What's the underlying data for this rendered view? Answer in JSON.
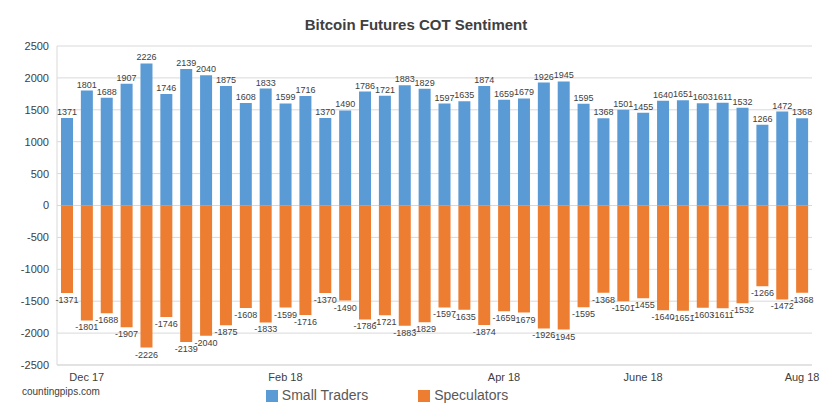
{
  "chart_data": {
    "type": "bar",
    "title": "Bitcoin Futures COT Sentiment",
    "annotations": [
      "countingpips.com"
    ],
    "categories": [
      null,
      "Dec 17",
      null,
      null,
      null,
      null,
      null,
      null,
      null,
      null,
      null,
      "Feb 18",
      null,
      null,
      null,
      null,
      null,
      null,
      null,
      null,
      null,
      null,
      "Apr 18",
      null,
      null,
      null,
      null,
      null,
      null,
      "June 18",
      null,
      null,
      null,
      null,
      null,
      null,
      null,
      "Aug 18"
    ],
    "series": [
      {
        "name": "Small Traders",
        "color": "#5b9bd5",
        "values": [
          1371,
          1801,
          1688,
          1907,
          2226,
          1746,
          2139,
          2040,
          1875,
          1608,
          1833,
          1599,
          1716,
          1370,
          1490,
          1786,
          1721,
          1883,
          1829,
          1597,
          1635,
          1874,
          1659,
          1679,
          1926,
          1945,
          1595,
          1368,
          1501,
          1455,
          1640,
          1651,
          1603,
          1611,
          1532,
          1266,
          1472,
          1368
        ]
      },
      {
        "name": "Speculators",
        "color": "#ed7d31",
        "values": [
          -1371,
          -1801,
          -1688,
          -1907,
          -2226,
          -1746,
          -2139,
          -2040,
          -1875,
          -1608,
          -1833,
          -1599,
          -1716,
          -1370,
          -1490,
          -1786,
          -1721,
          -1883,
          -1829,
          -1597,
          -1635,
          -1874,
          -1659,
          -1679,
          -1926,
          -1945,
          -1595,
          -1368,
          -1501,
          -1455,
          -1640,
          -1651,
          -1603,
          -1611,
          -1532,
          -1266,
          -1472,
          -1368
        ]
      }
    ],
    "ylim": [
      -2500,
      2500
    ],
    "yticks": [
      -2500,
      -2000,
      -1500,
      -1000,
      -500,
      0,
      500,
      1000,
      1500,
      2000,
      2500
    ],
    "grid": true,
    "data_labels": true,
    "legend": "bottom"
  }
}
